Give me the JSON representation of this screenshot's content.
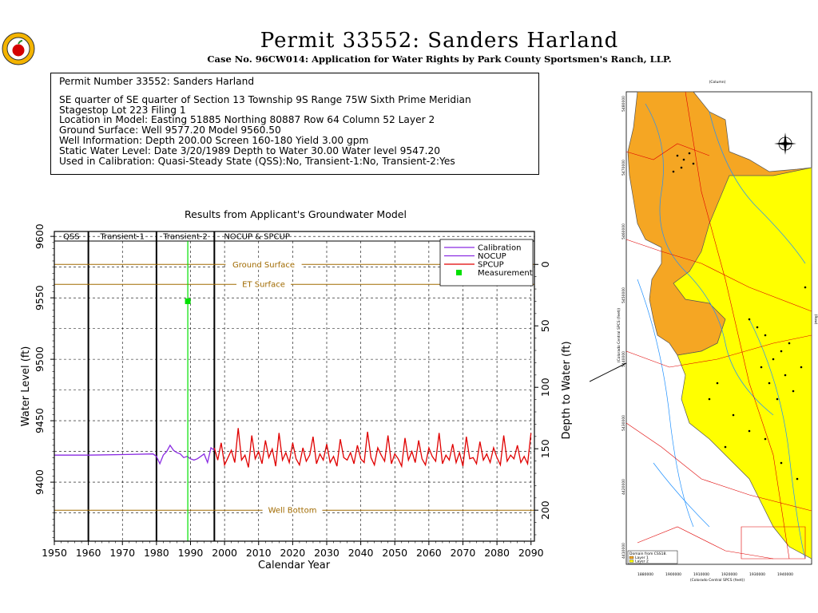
{
  "header": {
    "title": "Permit 33552:   Sanders Harland",
    "subtitle": "Case No. 96CW014: Application for Water Rights by Park County Sportsmen's Ranch, LLP."
  },
  "info": {
    "line1": "Permit Number 33552: Sanders Harland",
    "line2": "SE quarter of SE quarter of Section 13 Township 9S Range 75W Sixth Prime Meridian",
    "line3": "Stagestop Lot 223 Filing 1",
    "line4": "Location in Model: Easting  51885 Northing   80887 Row   64 Column 52 Layer 2",
    "line5": "Ground Surface: Well   9577.20 Model   9560.50",
    "line6": "Well Information: Depth    200.00 Screen 160-180 Yield       3.00 gpm",
    "line7": "Static Water Level: Date   3/20/1989 Depth to Water     30.00 Water level   9547.20",
    "line8": "Used in Calibration: Quasi-Steady State (QSS):No, Transient-1:No, Transient-2:Yes"
  },
  "chart_data": {
    "type": "line",
    "title": "Results from Applicant's Groundwater Model",
    "xlabel": "Calendar Year",
    "ylabel": "Water Level (ft)",
    "y2label": "Depth to Water (ft)",
    "xlim": [
      1950,
      2091
    ],
    "ylim": [
      9352,
      9604
    ],
    "xticks": [
      1950,
      1960,
      1970,
      1980,
      1990,
      2000,
      2010,
      2020,
      2030,
      2040,
      2050,
      2060,
      2070,
      2080,
      2090
    ],
    "yticks": [
      9400,
      9450,
      9500,
      9550,
      9600
    ],
    "y2ticks": [
      0,
      50,
      100,
      150,
      200
    ],
    "ground_surface_elev": 9577.2,
    "grid": true,
    "periods": [
      {
        "label": "QSS",
        "start": 1950,
        "end": 1960
      },
      {
        "label": "Transient-1",
        "start": 1960,
        "end": 1980
      },
      {
        "label": "Transient-2",
        "start": 1980,
        "end": 1997
      },
      {
        "label": "NOCUP & SPCUP",
        "start": 1997,
        "end": 2091
      }
    ],
    "reference_lines": [
      {
        "name": "Ground Surface",
        "y": 9577.2,
        "color": "#a06a00"
      },
      {
        "name": "ET Surface",
        "y": 9561,
        "color": "#a06a00"
      },
      {
        "name": "Well Bottom",
        "y": 9377.2,
        "color": "#a06a00"
      }
    ],
    "legend": [
      "Calibration",
      "NOCUP",
      "SPCUP",
      "Measurement"
    ],
    "legend_position": "top-right",
    "series": [
      {
        "name": "Calibration",
        "color": "#8a2be2",
        "x": [
          1950,
          1960,
          1970,
          1979,
          1980,
          1981,
          1982,
          1983,
          1984,
          1985,
          1986,
          1987,
          1988,
          1989,
          1990,
          1991,
          1992,
          1993,
          1994,
          1995,
          1996,
          1997
        ],
        "y": [
          9422,
          9422,
          9422.5,
          9423,
          9421,
          9415,
          9422,
          9425,
          9430,
          9426,
          9424,
          9423,
          9420,
          9421,
          9419,
          9418,
          9419,
          9421,
          9423,
          9416,
          9428,
          9426
        ]
      },
      {
        "name": "SPCUP",
        "color": "#e00000",
        "x": [
          1997,
          1998,
          1999,
          2000,
          2001,
          2002,
          2003,
          2004,
          2005,
          2006,
          2007,
          2008,
          2009,
          2010,
          2011,
          2012,
          2013,
          2014,
          2015,
          2016,
          2017,
          2018,
          2019,
          2020,
          2021,
          2022,
          2023,
          2024,
          2025,
          2026,
          2027,
          2028,
          2029,
          2030,
          2031,
          2032,
          2033,
          2034,
          2035,
          2036,
          2037,
          2038,
          2039,
          2040,
          2041,
          2042,
          2043,
          2044,
          2045,
          2046,
          2047,
          2048,
          2049,
          2050,
          2051,
          2052,
          2053,
          2054,
          2055,
          2056,
          2057,
          2058,
          2059,
          2060,
          2061,
          2062,
          2063,
          2064,
          2065,
          2066,
          2067,
          2068,
          2069,
          2070,
          2071,
          2072,
          2073,
          2074,
          2075,
          2076,
          2077,
          2078,
          2079,
          2080,
          2081,
          2082,
          2083,
          2084,
          2085,
          2086,
          2087,
          2088,
          2089,
          2090
        ],
        "y": [
          9428,
          9418,
          9432,
          9414,
          9420,
          9426,
          9416,
          9444,
          9418,
          9422,
          9412,
          9438,
          9419,
          9425,
          9415,
          9434,
          9420,
          9427,
          9413,
          9440,
          9418,
          9424,
          9416,
          9432,
          9419,
          9414,
          9428,
          9417,
          9422,
          9437,
          9415,
          9423,
          9418,
          9431,
          9416,
          9421,
          9413,
          9435,
          9420,
          9418,
          9424,
          9415,
          9430,
          9419,
          9416,
          9441,
          9420,
          9414,
          9428,
          9422,
          9417,
          9438,
          9415,
          9423,
          9419,
          9413,
          9436,
          9418,
          9425,
          9416,
          9434,
          9419,
          9414,
          9428,
          9421,
          9417,
          9440,
          9415,
          9422,
          9418,
          9431,
          9416,
          9424,
          9413,
          9437,
          9419,
          9420,
          9415,
          9433,
          9418,
          9423,
          9416,
          9428,
          9420,
          9414,
          9438,
          9417,
          9422,
          9419,
          9430,
          9416,
          9421,
          9415,
          9440
        ]
      },
      {
        "name": "Measurement",
        "color": "#00e000",
        "type": "scatter",
        "x": [
          1989.2
        ],
        "y": [
          9547.2
        ]
      }
    ]
  },
  "map": {
    "label_x": "(Colorado Central SPCS (feet))",
    "label_y": "(Colorado Central SPCS (feet))",
    "col_label": "(Column)",
    "row_label": "(Row)",
    "legend_title": "Domain  from  CSS18.",
    "legend_layer1": "Layer 1",
    "legend_layer2": "Layer 2",
    "x_ticks": [
      "1880000",
      "1900000",
      "1910000",
      "1920000",
      "1930000",
      "1940000"
    ],
    "y_ticks": [
      "5480000",
      "5470000",
      "5460000",
      "5450000",
      "5440000",
      "5430000",
      "4420000",
      "4410000"
    ],
    "colors": {
      "layer1": "#f5a623",
      "layer2": "#ffff00",
      "streams": "#1e90ff",
      "roads": "#e00000"
    }
  }
}
